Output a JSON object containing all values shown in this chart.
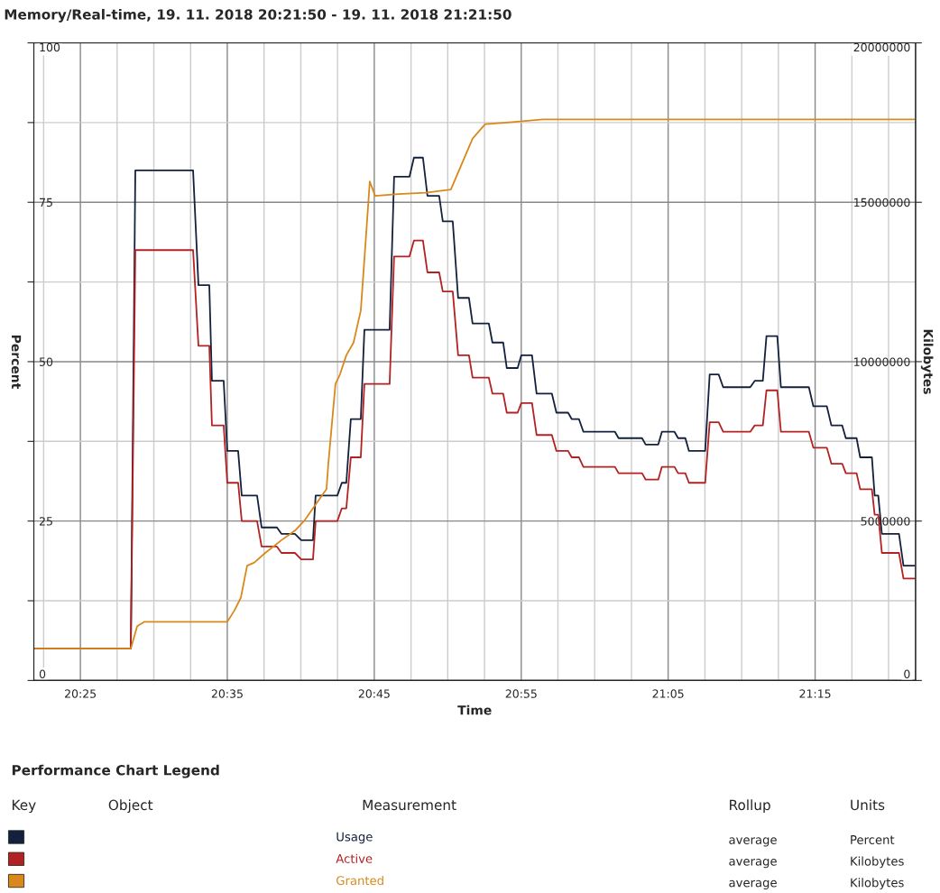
{
  "chart_data": {
    "type": "line",
    "title": "Memory/Real-time, 19. 11. 2018 20:21:50 - 19. 11. 2018 21:21:50",
    "xlabel": "Time",
    "ylabel": "Percent",
    "y2label": "Kilobytes",
    "legend_title": "Performance Chart Legend",
    "annotations": [
      "Key",
      "Object",
      "Measurement",
      "Rollup",
      "Units",
      "average",
      "Percent",
      "average",
      "Kilobytes",
      "average",
      "Kilobytes"
    ],
    "x": [
      20.3655,
      20.4739,
      20.479,
      20.5445,
      20.5506,
      20.5629,
      20.5659,
      20.5792,
      20.5833,
      20.5956,
      20.5997,
      20.6171,
      20.6222,
      20.6396,
      20.6447,
      20.66,
      20.6672,
      20.6805,
      20.6835,
      20.7081,
      20.7132,
      20.7183,
      20.7234,
      20.7347,
      20.7388,
      20.7674,
      20.7725,
      20.7899,
      20.795,
      20.8052,
      20.8103,
      20.8236,
      20.8277,
      20.839,
      20.8451,
      20.8574,
      20.8615,
      20.8799,
      20.884,
      20.8962,
      20.9003,
      20.9126,
      20.9167,
      20.9289,
      20.9341,
      20.9514,
      20.9566,
      20.9698,
      20.9739,
      20.9821,
      20.9872,
      21.023,
      21.0271,
      21.0537,
      21.0578,
      21.0721,
      21.0762,
      21.0905,
      21.0946,
      21.1028,
      21.1069,
      21.1253,
      21.1304,
      21.1406,
      21.1457,
      21.1764,
      21.1815,
      21.1907,
      21.1948,
      21.2071,
      21.2112,
      21.2429,
      21.248,
      21.2633,
      21.2684,
      21.2807,
      21.2848,
      21.297,
      21.3011,
      21.3144,
      21.3175,
      21.3216,
      21.3257,
      21.3451,
      21.3502,
      21.3625
    ],
    "series": [
      {
        "name": "Usage",
        "color": "#14213d",
        "values": [
          5,
          5,
          80,
          80,
          62,
          62,
          47,
          47,
          36,
          36,
          29,
          29,
          24,
          24,
          23,
          23,
          22,
          22,
          29,
          29,
          31,
          31,
          41,
          41,
          55,
          55,
          79,
          79,
          82,
          82,
          76,
          76,
          72,
          72,
          60,
          60,
          56,
          56,
          53,
          53,
          49,
          49,
          51,
          51,
          45,
          45,
          42,
          42,
          41,
          41,
          39,
          39,
          38,
          38,
          37,
          37,
          39,
          39,
          38,
          38,
          36,
          36,
          48,
          48,
          46,
          46,
          47,
          47,
          54,
          54,
          46,
          46,
          43,
          43,
          40,
          40,
          38,
          38,
          35,
          35,
          29,
          29,
          23,
          23,
          18,
          18
        ]
      },
      {
        "name": "Active",
        "color": "#b22222",
        "axis": "y2",
        "values": [
          1000000,
          1000000,
          13500000,
          13500000,
          10500000,
          10500000,
          8000000,
          8000000,
          6200000,
          6200000,
          5000000,
          5000000,
          4200000,
          4200000,
          4000000,
          4000000,
          3800000,
          3800000,
          5000000,
          5000000,
          5400000,
          5400000,
          7000000,
          7000000,
          9300000,
          9300000,
          13300000,
          13300000,
          13800000,
          13800000,
          12800000,
          12800000,
          12200000,
          12200000,
          10200000,
          10200000,
          9500000,
          9500000,
          9000000,
          9000000,
          8400000,
          8400000,
          8700000,
          8700000,
          7700000,
          7700000,
          7200000,
          7200000,
          7000000,
          7000000,
          6700000,
          6700000,
          6500000,
          6500000,
          6300000,
          6300000,
          6700000,
          6700000,
          6500000,
          6500000,
          6200000,
          6200000,
          8100000,
          8100000,
          7800000,
          7800000,
          8000000,
          8000000,
          9100000,
          9100000,
          7800000,
          7800000,
          7300000,
          7300000,
          6800000,
          6800000,
          6500000,
          6500000,
          6000000,
          6000000,
          5200000,
          5200000,
          4000000,
          4000000,
          3200000,
          3200000
        ]
      },
      {
        "name": "Granted",
        "color": "#d9891c",
        "axis": "y2",
        "x": [
          20.3655,
          20.4739,
          20.4811,
          20.4893,
          20.5833,
          20.5915,
          20.5987,
          20.6058,
          20.614,
          20.6263,
          20.6447,
          20.66,
          20.6703,
          20.6805,
          20.6958,
          20.6979,
          20.706,
          20.7111,
          20.7183,
          20.7265,
          20.7347,
          20.7408,
          20.7449,
          20.751,
          20.7776,
          20.8083,
          20.8369,
          20.8492,
          20.8615,
          20.8758,
          20.9003,
          20.9412,
          21.3625
        ],
        "values": [
          1000000,
          1000000,
          1700000,
          1840000,
          1840000,
          2200000,
          2600000,
          3600000,
          3700000,
          4000000,
          4400000,
          4700000,
          5000000,
          5400000,
          6000000,
          6800000,
          9300000,
          9600000,
          10200000,
          10600000,
          11600000,
          14000000,
          15650000,
          15200000,
          15260000,
          15300000,
          15400000,
          16200000,
          17000000,
          17450000,
          17500000,
          17600000,
          17600000
        ]
      }
    ],
    "xlim": [
      20.3639,
      21.3639
    ],
    "xticks": [
      {
        "value": 20.375,
        "label": null
      },
      {
        "value": 20.4167,
        "label": "20:25"
      },
      {
        "value": 20.4583,
        "label": null
      },
      {
        "value": 20.5,
        "label": null
      },
      {
        "value": 20.5417,
        "label": null
      },
      {
        "value": 20.5833,
        "label": "20:35"
      },
      {
        "value": 20.625,
        "label": null
      },
      {
        "value": 20.6667,
        "label": null
      },
      {
        "value": 20.7083,
        "label": null
      },
      {
        "value": 20.75,
        "label": "20:45"
      },
      {
        "value": 20.7917,
        "label": null
      },
      {
        "value": 20.8333,
        "label": null
      },
      {
        "value": 20.875,
        "label": null
      },
      {
        "value": 20.9167,
        "label": "20:55"
      },
      {
        "value": 20.9583,
        "label": null
      },
      {
        "value": 21.0,
        "label": null
      },
      {
        "value": 21.0417,
        "label": null
      },
      {
        "value": 21.0833,
        "label": "21:05"
      },
      {
        "value": 21.125,
        "label": null
      },
      {
        "value": 21.1667,
        "label": null
      },
      {
        "value": 21.2083,
        "label": null
      },
      {
        "value": 21.25,
        "label": "21:15"
      },
      {
        "value": 21.2917,
        "label": null
      },
      {
        "value": 21.3333,
        "label": null
      }
    ],
    "ylim": [
      0,
      100
    ],
    "yticks": [
      0,
      {
        "value": 12.5,
        "label": null
      },
      25,
      {
        "value": 37.5,
        "label": null
      },
      50,
      {
        "value": 62.5,
        "label": null
      },
      75,
      {
        "value": 87.5,
        "label": null
      },
      100
    ],
    "y2lim": [
      0,
      20000000
    ],
    "y2ticks": [
      0,
      5000000,
      10000000,
      15000000,
      20000000
    ],
    "grid": true,
    "legend": "bottom",
    "line_style": "solid",
    "marker": "none"
  }
}
